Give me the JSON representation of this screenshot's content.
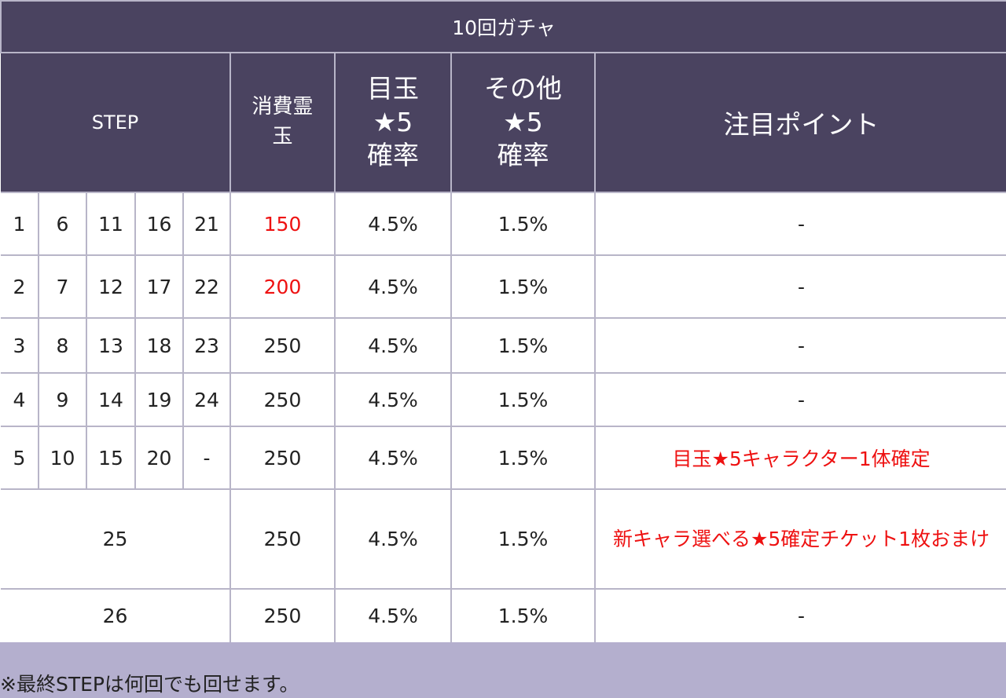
{
  "title": "10回ガチャ",
  "headers": {
    "step": "STEP",
    "cost_line1": "消費霊",
    "cost_line2": "玉",
    "featured_line1": "目玉",
    "featured_line2": "★5",
    "featured_line3": "確率",
    "other_line1": "その他",
    "other_line2": "★5",
    "other_line3": "確率",
    "point": "注目ポイント"
  },
  "rows": [
    {
      "steps": [
        "1",
        "6",
        "11",
        "16",
        "21"
      ],
      "cost": "150",
      "featured": "4.5%",
      "other": "1.5%",
      "point": "-"
    },
    {
      "steps": [
        "2",
        "7",
        "12",
        "17",
        "22"
      ],
      "cost": "200",
      "featured": "4.5%",
      "other": "1.5%",
      "point": "-"
    },
    {
      "steps": [
        "3",
        "8",
        "13",
        "18",
        "23"
      ],
      "cost": "250",
      "featured": "4.5%",
      "other": "1.5%",
      "point": "-"
    },
    {
      "steps": [
        "4",
        "9",
        "14",
        "19",
        "24"
      ],
      "cost": "250",
      "featured": "4.5%",
      "other": "1.5%",
      "point": "-"
    },
    {
      "steps": [
        "5",
        "10",
        "15",
        "20",
        "-"
      ],
      "cost": "250",
      "featured": "4.5%",
      "other": "1.5%",
      "point": "目玉★5キャラクター1体確定"
    }
  ],
  "special_rows": [
    {
      "step": "25",
      "cost": "250",
      "featured": "4.5%",
      "other": "1.5%",
      "point": "新キャラ選べる★5確定チケット1枚おまけ"
    },
    {
      "step": "26",
      "cost": "250",
      "featured": "4.5%",
      "other": "1.5%",
      "point": "-"
    }
  ],
  "note": "※最終STEPは何回でも回せます。",
  "colors": {
    "header_bg": "#4a4360",
    "note_bg": "#b4afce",
    "highlight": "#ee1111"
  }
}
